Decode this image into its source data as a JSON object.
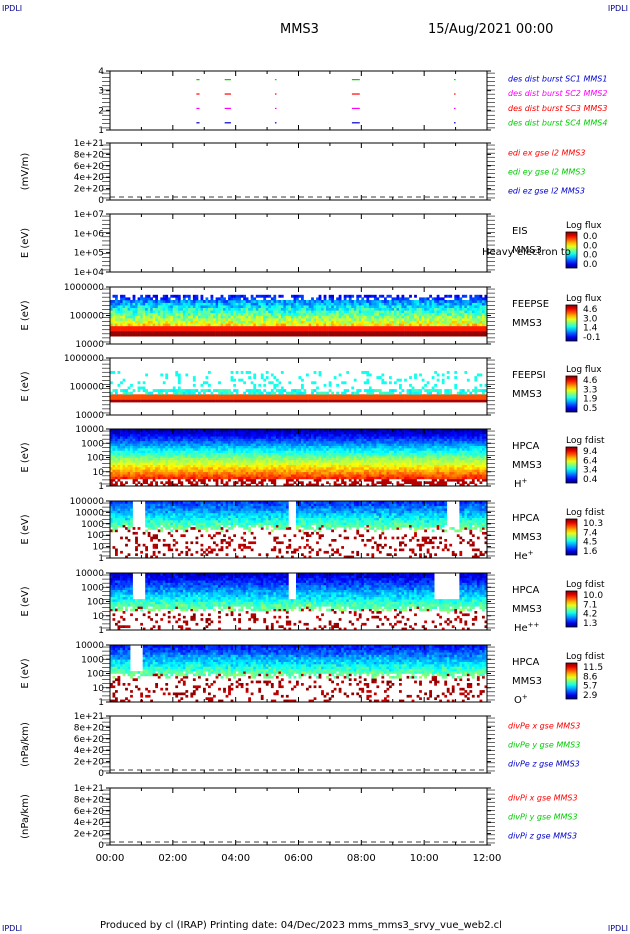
{
  "corners": {
    "tl": "IPDLI",
    "tr": "IPDLI",
    "bl": "IPDLI",
    "br": "IPDLI"
  },
  "header": {
    "spacecraft": "MMS3",
    "datetime": "15/Aug/2021 00:00"
  },
  "footer": {
    "text": "Produced by cl (IRAP)    Printing date: 04/Dec/2023    mms_mms3_srvy_vue_web2.cl"
  },
  "colors": {
    "red": "#ff0000",
    "green": "#00cc00",
    "blue": "#0000cc",
    "magenta": "#ff00ff"
  },
  "chart_data": [
    {
      "type": "scatter",
      "id": "burst",
      "yticks": [
        "1",
        "2",
        "3",
        "4"
      ],
      "ylim": [
        0.5,
        4.6
      ],
      "legend": [
        {
          "text": "des dist burst SC1 MMS1",
          "color": "#0000cc"
        },
        {
          "text": "des dist burst SC2 MMS2",
          "color": "#ff00ff"
        },
        {
          "text": "des dist burst SC3 MMS3",
          "color": "#ff0000"
        },
        {
          "text": "des dist burst SC4 MMS4",
          "color": "#00cc00"
        }
      ],
      "segments": [
        [
          2.75,
          2.85
        ],
        [
          3.65,
          3.85
        ],
        [
          5.25,
          5.3
        ],
        [
          7.7,
          7.95
        ],
        [
          10.95,
          11.0
        ]
      ]
    },
    {
      "type": "line",
      "id": "edi",
      "ylabel": "(mV/m)",
      "yticks": [
        "0",
        "2e+20",
        "4e+20",
        "6e+20",
        "8e+20",
        "1e+21"
      ],
      "dashed_zero": true,
      "legend": [
        {
          "text": "edi ex gse l2 MMS3",
          "color": "#ff0000"
        },
        {
          "text": "edi ey gse l2 MMS3",
          "color": "#00cc00"
        },
        {
          "text": "edi ez gse l2 MMS3",
          "color": "#0000cc"
        }
      ]
    },
    {
      "type": "heatmap",
      "id": "eis",
      "ylabel": "E (eV)",
      "yticks": [
        "1e+04",
        "1e+05",
        "1e+06",
        "1e+07"
      ],
      "label_lines": [
        "EIS",
        "MMS3"
      ],
      "overflow_text": "Heavy electron to",
      "cbar_title": "Log flux",
      "cbar_ticks": [
        "0.0",
        "0.0",
        "0.0",
        "0.0"
      ]
    },
    {
      "type": "heatmap",
      "id": "feepse",
      "ylabel": "E (eV)",
      "yticks": [
        "10000",
        "100000",
        "1000000"
      ],
      "label_lines": [
        "FEEPSE",
        "MMS3"
      ],
      "cbar_title": "Log flux",
      "cbar_ticks": [
        "4.6",
        "3.0",
        "1.4",
        "-0.1"
      ]
    },
    {
      "type": "heatmap",
      "id": "feepsi",
      "ylabel": "E (eV)",
      "yticks": [
        "10000",
        "100000",
        "1000000"
      ],
      "label_lines": [
        "FEEPSI",
        "MMS3"
      ],
      "cbar_title": "Log flux",
      "cbar_ticks": [
        "4.6",
        "3.3",
        "1.9",
        "0.5"
      ]
    },
    {
      "type": "heatmap",
      "id": "hpca_h",
      "ylabel": "E (eV)",
      "yticks": [
        "1",
        "10",
        "100",
        "1000",
        "10000"
      ],
      "label_lines": [
        "HPCA",
        "MMS3",
        "H+"
      ],
      "cbar_title": "Log fdist",
      "cbar_ticks": [
        "9.4",
        "6.4",
        "3.4",
        "0.4"
      ]
    },
    {
      "type": "heatmap",
      "id": "hpca_he",
      "ylabel": "E (eV)",
      "yticks": [
        "1",
        "10",
        "100",
        "1000",
        "10000",
        "100000"
      ],
      "label_lines": [
        "HPCA",
        "MMS3",
        "He+"
      ],
      "cbar_title": "Log fdist",
      "cbar_ticks": [
        "10.3",
        "7.4",
        "4.5",
        "1.6"
      ]
    },
    {
      "type": "heatmap",
      "id": "hpca_hepp",
      "ylabel": "E (eV)",
      "yticks": [
        "1",
        "10",
        "100",
        "1000",
        "10000"
      ],
      "label_lines": [
        "HPCA",
        "MMS3",
        "He++"
      ],
      "cbar_title": "Log fdist",
      "cbar_ticks": [
        "10.0",
        "7.1",
        "4.2",
        "1.3"
      ]
    },
    {
      "type": "heatmap",
      "id": "hpca_o",
      "ylabel": "E (eV)",
      "yticks": [
        "1",
        "10",
        "100",
        "1000",
        "10000"
      ],
      "label_lines": [
        "HPCA",
        "MMS3",
        "O+"
      ],
      "cbar_title": "Log fdist",
      "cbar_ticks": [
        "11.5",
        "8.6",
        "5.7",
        "2.9"
      ]
    },
    {
      "type": "line",
      "id": "divpe",
      "ylabel": "(nPa/km)",
      "yticks": [
        "0",
        "2e+20",
        "4e+20",
        "6e+20",
        "8e+20",
        "1e+21"
      ],
      "dashed_zero": true,
      "legend": [
        {
          "text": "divPe x gse MMS3",
          "color": "#ff0000"
        },
        {
          "text": "divPe y gse MMS3",
          "color": "#00cc00"
        },
        {
          "text": "divPe z gse MMS3",
          "color": "#0000cc"
        }
      ]
    },
    {
      "type": "line",
      "id": "divpi",
      "ylabel": "(nPa/km)",
      "yticks": [
        "0",
        "2e+20",
        "4e+20",
        "6e+20",
        "8e+20",
        "1e+21"
      ],
      "dashed_zero": true,
      "legend": [
        {
          "text": "divPi x gse MMS3",
          "color": "#ff0000"
        },
        {
          "text": "divPi y gse MMS3",
          "color": "#00cc00"
        },
        {
          "text": "divPi z gse MMS3",
          "color": "#0000cc"
        }
      ]
    }
  ],
  "xaxis": {
    "ticks": [
      "00:00",
      "02:00",
      "04:00",
      "06:00",
      "08:00",
      "10:00",
      "12:00"
    ]
  }
}
